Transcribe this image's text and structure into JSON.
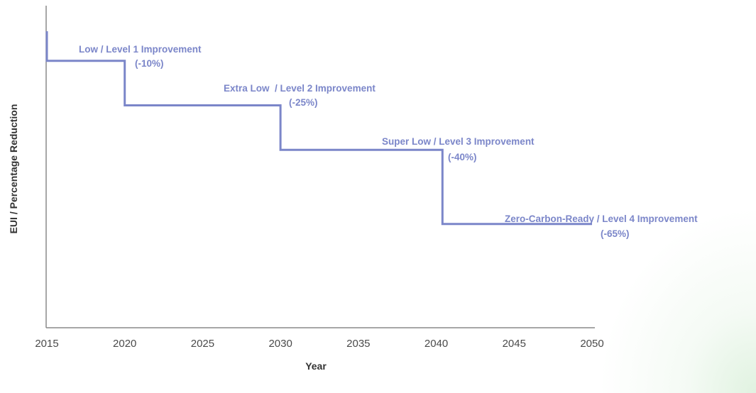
{
  "chart_data": {
    "type": "line",
    "title": "",
    "xlabel": "Year",
    "ylabel": "EUI / Percentage Reduction",
    "x_ticks": [
      "2015",
      "2020",
      "2025",
      "2030",
      "2035",
      "2040",
      "2045",
      "2050"
    ],
    "xlim": [
      2015,
      2050
    ],
    "ylim": [
      -100,
      0
    ],
    "grid": false,
    "line_color": "#7b86c9",
    "series": [
      {
        "x": [
          2015,
          2015,
          2020,
          2020,
          2030,
          2030,
          2040.4,
          2040.4,
          2050
        ],
        "y": [
          0,
          -10,
          -10,
          -25,
          -25,
          -40,
          -40,
          -65,
          -65
        ]
      }
    ],
    "annotations": [
      {
        "label": "Low / Level 1 Improvement",
        "value": "(-10%)"
      },
      {
        "label": "Extra Low  / Level 2 Improvement",
        "value": "(-25%)"
      },
      {
        "label": "Super Low / Level 3 Improvement",
        "value": "(-40%)"
      },
      {
        "label": "Zero-Carbon-Ready / Level 4 Improvement",
        "value": "(-65%)"
      }
    ]
  }
}
